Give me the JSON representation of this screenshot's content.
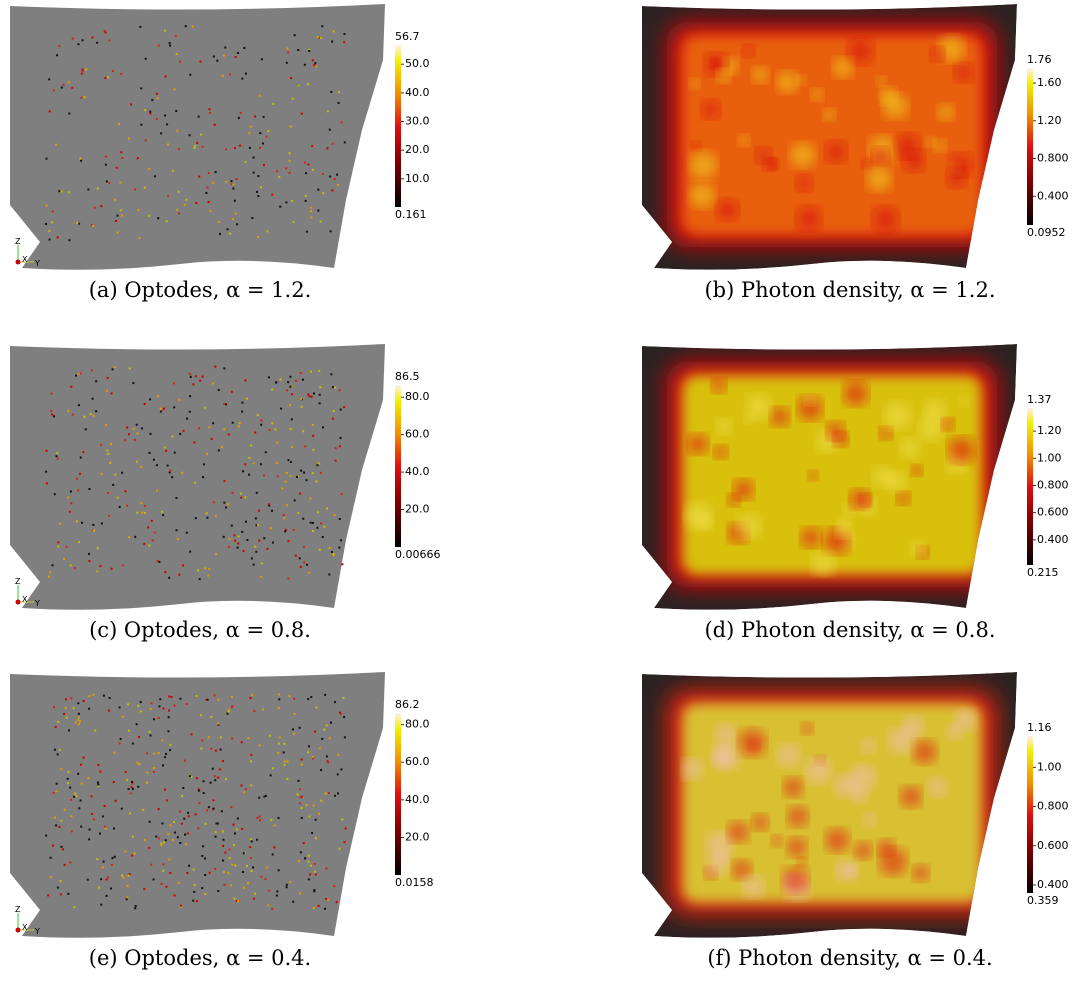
{
  "panels": [
    {
      "caption": "(a) Optodes, α = 1.2.",
      "axes": [
        "Z",
        "X",
        "Y"
      ],
      "colorbar": {
        "range": [
          0.161,
          56.7
        ],
        "ticks": [
          {
            "value": 10,
            "label": "10.0"
          },
          {
            "value": 20,
            "label": "20.0"
          },
          {
            "value": 30,
            "label": "30.0"
          },
          {
            "value": 40,
            "label": "40.0"
          },
          {
            "value": 50,
            "label": "50.0"
          }
        ]
      }
    },
    {
      "caption": "(b) Photon density, α = 1.2.",
      "colorbar": {
        "range": [
          0.0952,
          1.76
        ],
        "ticks": [
          {
            "value": 0.4,
            "label": "0.400"
          },
          {
            "value": 0.8,
            "label": "0.800"
          },
          {
            "value": 1.2,
            "label": "1.20"
          },
          {
            "value": 1.6,
            "label": "1.60"
          }
        ]
      }
    },
    {
      "caption": "(c) Optodes, α = 0.8.",
      "axes": [
        "Z",
        "X",
        "Y"
      ],
      "colorbar": {
        "range": [
          0.00666,
          86.5
        ],
        "ticks": [
          {
            "value": 20,
            "label": "20.0"
          },
          {
            "value": 40,
            "label": "40.0"
          },
          {
            "value": 60,
            "label": "60.0"
          },
          {
            "value": 80,
            "label": "80.0"
          }
        ]
      }
    },
    {
      "caption": "(d) Photon density, α = 0.8.",
      "colorbar": {
        "range": [
          0.215,
          1.37
        ],
        "ticks": [
          {
            "value": 0.4,
            "label": "0.400"
          },
          {
            "value": 0.6,
            "label": "0.600"
          },
          {
            "value": 0.8,
            "label": "0.800"
          },
          {
            "value": 1,
            "label": "1.00"
          },
          {
            "value": 1.2,
            "label": "1.20"
          }
        ]
      }
    },
    {
      "caption": "(e) Optodes, α = 0.4.",
      "axes": [
        "Z",
        "X",
        "Y"
      ],
      "colorbar": {
        "range": [
          0.0158,
          86.2
        ],
        "ticks": [
          {
            "value": 20,
            "label": "20.0"
          },
          {
            "value": 40,
            "label": "40.0"
          },
          {
            "value": 60,
            "label": "60.0"
          },
          {
            "value": 80,
            "label": "80.0"
          }
        ]
      }
    },
    {
      "caption": "(f) Photon density, α = 0.4.",
      "colorbar": {
        "range": [
          0.359,
          1.16
        ],
        "ticks": [
          {
            "value": 0.4,
            "label": "0.400"
          },
          {
            "value": 0.6,
            "label": "0.600"
          },
          {
            "value": 0.8,
            "label": "0.800"
          },
          {
            "value": 1,
            "label": "1.00"
          }
        ]
      }
    }
  ]
}
